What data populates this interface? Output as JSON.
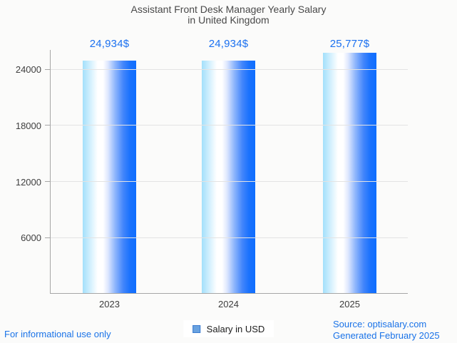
{
  "chart_data": {
    "type": "bar",
    "title": "Assistant Front Desk Manager Yearly Salary in United Kingdom",
    "title_lines": [
      "Assistant Front Desk Manager Yearly Salary",
      "in United Kingdom"
    ],
    "categories": [
      "2023",
      "2024",
      "2025"
    ],
    "series": [
      {
        "name": "Salary in USD",
        "values": [
          24934,
          24934,
          25777
        ]
      }
    ],
    "value_labels": [
      "24,934$",
      "24,934$",
      "25,777$"
    ],
    "xlabel": "",
    "ylabel": "",
    "ylim": [
      0,
      26000
    ],
    "yticks": [
      6000,
      12000,
      18000,
      24000
    ],
    "grid": true,
    "legend_position": "bottom"
  },
  "legend": {
    "label": "Salary in USD",
    "swatch_color": "#69a2e0",
    "swatch_border": "#3b7bd0"
  },
  "footer": {
    "disclaimer": "For informational use only",
    "source": "Source: optisalary.com",
    "generated": "Generated February 2025"
  },
  "colors": {
    "background": "#fbfbfa",
    "title_text": "#494949",
    "axis_line": "#a6a6a6",
    "gridline": "#e3e3e3",
    "tick_text": "#3f3f3f",
    "value_label_text": "#1a70f0",
    "footer_text": "#1a73e8",
    "bar_gradient_left": "#a3e0fb",
    "bar_gradient_mid": "#ffffff",
    "bar_gradient_right": "#0e6efe"
  }
}
